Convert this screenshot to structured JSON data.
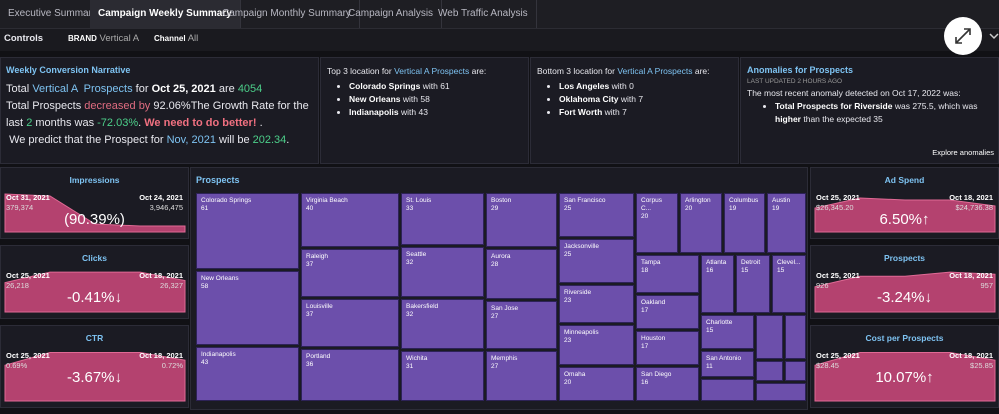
{
  "tabs": [
    "Executive Summary",
    "Campaign Weekly Summary",
    "Campaign Monthly Summary",
    "Campaign Analysis",
    "Web Traffic Analysis"
  ],
  "controls": {
    "label": "Controls",
    "filters": [
      {
        "name": "BRAND",
        "value": "Vertical A"
      },
      {
        "name": "Channel",
        "value": "All"
      }
    ]
  },
  "narrative": {
    "title": "Weekly Conversion Narrative",
    "lines": [
      [
        "Total",
        "Vertical A  Prospects",
        "for",
        "Oct 25, 2021",
        "are",
        "4054"
      ],
      [
        "Total Prospects",
        "decreased by",
        "92.06%",
        "The Growth Rate for the last",
        "2",
        "months was",
        "-72.03%",
        ".",
        "We need to do better!",
        "."
      ],
      [
        "We predict that the Prospect for",
        "Nov, 2021",
        "will be",
        "202.34",
        "."
      ]
    ]
  },
  "top_locations": {
    "title": [
      "Top 3 location for",
      "Vertical A Prospects",
      "are:"
    ],
    "items": [
      {
        "name": "Colorado Springs",
        "connector": "with",
        "value": 61
      },
      {
        "name": "New Orleans",
        "connector": "with",
        "value": 58
      },
      {
        "name": "Indianapolis",
        "connector": "with",
        "value": 43
      }
    ]
  },
  "bottom_locations": {
    "title": [
      "Bottom 3 location for",
      "Vertical A Prospects",
      "are:"
    ],
    "items": [
      {
        "name": "Los Angeles",
        "connector": "with",
        "value": 0
      },
      {
        "name": "Oklahoma City",
        "connector": "with",
        "value": 7
      },
      {
        "name": "Fort Worth",
        "connector": "with",
        "value": 7
      }
    ]
  },
  "anomalies": {
    "title": "Anomalies for Prospects",
    "updated": "LAST UPDATED 2 HOURS AGO",
    "intro": "The most recent anomaly detected on Oct 17, 2022 was:",
    "bullet": [
      "Total Prospects for Riverside",
      "was 275.5, which was",
      "higher",
      "than the expected 35"
    ],
    "link": "Explore anomalies"
  },
  "kpis_left": [
    {
      "title": "Impressions",
      "left_date": "Oct 31, 2021",
      "left_value": "379,374",
      "right_date": "Oct 24, 2021",
      "right_value": "3,946,475",
      "change": "(90.39%)"
    },
    {
      "title": "Clicks",
      "left_date": "Oct 25, 2021",
      "left_value": "26,218",
      "right_date": "Oct 18, 2021",
      "right_value": "26,327",
      "change": "-0.41%↓"
    },
    {
      "title": "CTR",
      "left_date": "Oct 25, 2021",
      "left_value": "0.69%",
      "right_date": "Oct 18, 2021",
      "right_value": "0.72%",
      "change": "-3.67%↓"
    }
  ],
  "kpis_right": [
    {
      "title": "Ad Spend",
      "left_date": "Oct 25, 2021",
      "left_value": "$26,345.20",
      "right_date": "Oct 18, 2021",
      "right_value": "$24,736.38",
      "change": "6.50%↑"
    },
    {
      "title": "Prospects",
      "left_date": "Oct 25, 2021",
      "left_value": "926",
      "right_date": "Oct 18, 2021",
      "right_value": "957",
      "change": "-3.24%↓"
    },
    {
      "title": "Cost per Prospects",
      "left_date": "Oct 25, 2021",
      "left_value": "$28.45",
      "right_date": "Oct 18, 2021",
      "right_value": "$25.85",
      "change": "10.07%↑"
    }
  ],
  "treemap": {
    "title": "Prospects",
    "cells": [
      {
        "label": "Colorado Springs",
        "value": 61
      },
      {
        "label": "New Orleans",
        "value": 58
      },
      {
        "label": "Indianapolis",
        "value": 43
      },
      {
        "label": "Virginia Beach",
        "value": 40
      },
      {
        "label": "Raleigh",
        "value": 37
      },
      {
        "label": "Louisville",
        "value": 37
      },
      {
        "label": "Portland",
        "value": 36
      },
      {
        "label": "St. Louis",
        "value": 33
      },
      {
        "label": "Seattle",
        "value": 32
      },
      {
        "label": "Bakersfield",
        "value": 32
      },
      {
        "label": "Wichita",
        "value": 31
      },
      {
        "label": "Boston",
        "value": 29
      },
      {
        "label": "Aurora",
        "value": 28
      },
      {
        "label": "San Jose",
        "value": 27
      },
      {
        "label": "Memphis",
        "value": 27
      },
      {
        "label": "San Francisco",
        "value": 25
      },
      {
        "label": "Jacksonville",
        "value": 25
      },
      {
        "label": "Riverside",
        "value": 23
      },
      {
        "label": "Minneapolis",
        "value": 23
      },
      {
        "label": "Omaha",
        "value": 20
      },
      {
        "label": "Corpus C...",
        "value": 20
      },
      {
        "label": "Arlington",
        "value": 20
      },
      {
        "label": "Columbus",
        "value": 19
      },
      {
        "label": "Austin",
        "value": 19
      },
      {
        "label": "Tampa",
        "value": 18
      },
      {
        "label": "Atlanta",
        "value": 16
      },
      {
        "label": "Detroit",
        "value": 15
      },
      {
        "label": "Clevel...",
        "value": 15
      },
      {
        "label": "Oakland",
        "value": 17
      },
      {
        "label": "Houston",
        "value": 17
      },
      {
        "label": "San Diego",
        "value": 16
      },
      {
        "label": "Charlotte",
        "value": 15
      },
      {
        "label": "San Antonio",
        "value": 11
      }
    ]
  }
}
